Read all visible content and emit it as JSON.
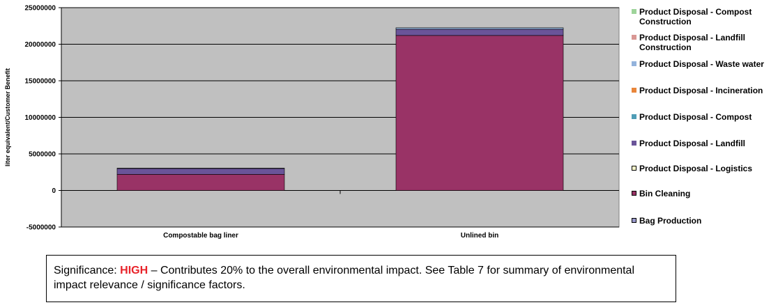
{
  "chart_data": {
    "type": "bar",
    "stacked": true,
    "categories": [
      "Compostable bag liner",
      "Unlined bin"
    ],
    "ylabel": "liter equivalent/Customer Benefit",
    "ylim": [
      -5000000,
      25000000
    ],
    "yticks": [
      -5000000,
      0,
      5000000,
      10000000,
      15000000,
      20000000,
      25000000
    ],
    "ytick_labels": [
      "-5000000",
      "0",
      "5000000",
      "10000000",
      "15000000",
      "20000000",
      "25000000"
    ],
    "grid": "horizontal",
    "plot_background": "#c0c0c0",
    "legend_position": "right",
    "series": [
      {
        "name": "Bag Production",
        "color": "#9999cc",
        "values": [
          0,
          0
        ]
      },
      {
        "name": "Bin Cleaning",
        "color": "#993366",
        "values": [
          2200000,
          21200000
        ]
      },
      {
        "name": "Product Disposal - Logistics",
        "color": "#ffffcc",
        "values": [
          0,
          0
        ]
      },
      {
        "name": "Product Disposal - Landfill",
        "color": "#6a5499",
        "values": [
          800000,
          850000
        ]
      },
      {
        "name": "Product Disposal - Compost",
        "color": "#4f9db6",
        "values": [
          0,
          0
        ]
      },
      {
        "name": "Product Disposal - Incineration",
        "color": "#e9863b",
        "values": [
          0,
          0
        ]
      },
      {
        "name": "Product Disposal - Waste water",
        "color": "#93b3dc",
        "values": [
          50000,
          200000
        ]
      },
      {
        "name": "Product Disposal - Landfill Construction",
        "color": "#d99794",
        "values": [
          0,
          0
        ]
      },
      {
        "name": "Product Disposal - Compost Construction",
        "color": "#9ed49a",
        "values": [
          0,
          0
        ]
      }
    ],
    "legend_order": [
      "Product Disposal - Compost Construction",
      "Product Disposal - Landfill Construction",
      "Product Disposal - Waste water",
      "Product Disposal - Incineration",
      "Product Disposal - Compost",
      "Product Disposal - Landfill",
      "Product Disposal - Logistics",
      "Bin Cleaning",
      "Bag Production"
    ]
  },
  "significance": {
    "prefix": "Significance: ",
    "level": "HIGH",
    "text": " – Contributes 20% to the overall environmental impact.  See Table 7 for summary of environmental impact relevance / significance factors."
  }
}
